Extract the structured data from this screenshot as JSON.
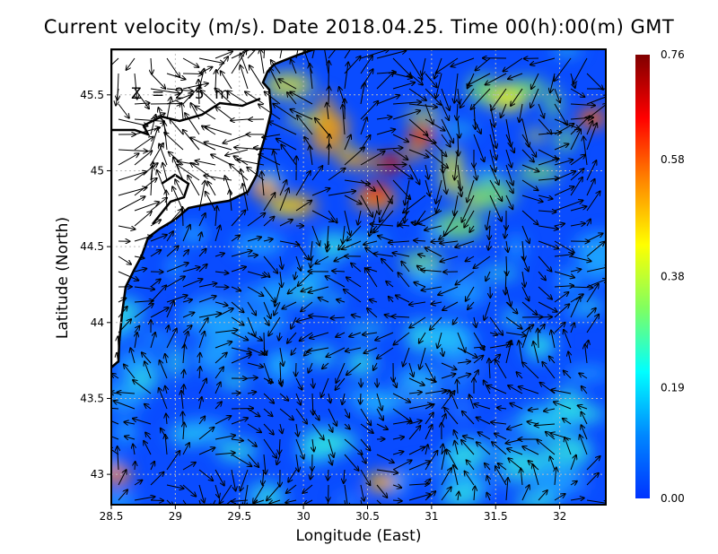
{
  "title": "Current velocity (m/s). Date 2018.04.25. Time 00(h):00(m) GMT",
  "depth_label": "Z = 2.5 m",
  "chart_data": {
    "type": "heatmap",
    "title": "Current velocity (m/s). Date 2018.04.25. Time 00(h):00(m) GMT",
    "xlabel": "Longitude (East)",
    "ylabel": "Latitude (North)",
    "xlim": [
      28.5,
      32.36
    ],
    "ylim": [
      42.8,
      45.8
    ],
    "xticks": [
      "28.5",
      "29",
      "29.5",
      "30",
      "30.5",
      "31",
      "31.5",
      "32"
    ],
    "yticks": [
      "43",
      "43.5",
      "44",
      "44.5",
      "45",
      "45.5"
    ],
    "grid": true,
    "overlay": "velocity vectors (arrows)",
    "colorbar": {
      "min": 0.0,
      "max": 0.76,
      "ticks": [
        "0.00",
        "0.19",
        "0.38",
        "0.58",
        "0.76"
      ],
      "colors": [
        "#0033ff",
        "#0088ff",
        "#00ffff",
        "#80ff60",
        "#ffff00",
        "#ff8800",
        "#ff0000",
        "#800000"
      ]
    }
  }
}
